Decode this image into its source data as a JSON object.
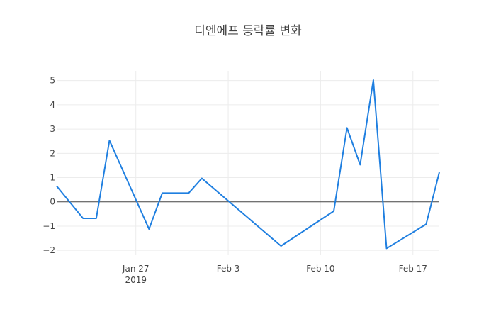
{
  "chart_data": {
    "type": "line",
    "title": "디엔에프 등락률 변화",
    "xlabel": "",
    "ylabel": "",
    "x_ticks": [
      {
        "date": "2019-01-27",
        "label": "Jan 27",
        "sublabel": "2019"
      },
      {
        "date": "2019-02-03",
        "label": "Feb 3",
        "sublabel": ""
      },
      {
        "date": "2019-02-10",
        "label": "Feb 10",
        "sublabel": ""
      },
      {
        "date": "2019-02-17",
        "label": "Feb 17",
        "sublabel": ""
      }
    ],
    "y_ticks": [
      -2,
      -1,
      0,
      1,
      2,
      3,
      4,
      5
    ],
    "xlim": [
      "2019-01-21",
      "2019-02-19"
    ],
    "ylim": [
      -2.2,
      5.4
    ],
    "grid": true,
    "legend": "none",
    "series": [
      {
        "color": "#1f7fe0",
        "points": [
          {
            "x": "2019-01-21",
            "y": 0.65
          },
          {
            "x": "2019-01-23",
            "y": -0.68
          },
          {
            "x": "2019-01-24",
            "y": -0.68
          },
          {
            "x": "2019-01-25",
            "y": 2.53
          },
          {
            "x": "2019-01-28",
            "y": -1.12
          },
          {
            "x": "2019-01-29",
            "y": 0.36
          },
          {
            "x": "2019-01-31",
            "y": 0.36
          },
          {
            "x": "2019-02-01",
            "y": 0.97
          },
          {
            "x": "2019-02-07",
            "y": -1.82
          },
          {
            "x": "2019-02-11",
            "y": -0.38
          },
          {
            "x": "2019-02-12",
            "y": 3.05
          },
          {
            "x": "2019-02-13",
            "y": 1.53
          },
          {
            "x": "2019-02-14",
            "y": 5.02
          },
          {
            "x": "2019-02-15",
            "y": -1.92
          },
          {
            "x": "2019-02-18",
            "y": -0.92
          },
          {
            "x": "2019-02-19",
            "y": 1.22
          }
        ]
      }
    ]
  }
}
